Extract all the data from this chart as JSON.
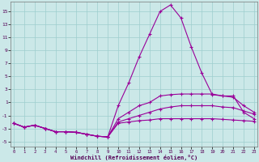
{
  "xlabel": "Windchill (Refroidissement éolien,°C)",
  "bg_color": "#cbe8e8",
  "line_color": "#990099",
  "x_ticks": [
    0,
    1,
    2,
    3,
    4,
    5,
    6,
    7,
    8,
    9,
    10,
    11,
    12,
    13,
    14,
    15,
    16,
    17,
    18,
    19,
    20,
    21,
    22,
    23
  ],
  "y_ticks": [
    -5,
    -3,
    -1,
    1,
    3,
    5,
    7,
    9,
    11,
    13,
    15
  ],
  "xlim": [
    -0.3,
    23.3
  ],
  "ylim": [
    -5.8,
    16.5
  ],
  "series": [
    [
      0,
      1,
      2,
      3,
      4,
      5,
      6,
      7,
      8,
      9,
      10,
      11,
      12,
      13,
      14,
      15,
      16,
      17,
      18,
      19,
      20,
      21,
      22,
      23
    ],
    [
      -2.2,
      -2.8,
      -2.5,
      -3.0,
      -3.5,
      -3.5,
      -3.6,
      -3.9,
      -4.2,
      -4.3,
      0.5,
      4.0,
      8.0,
      11.5,
      15.0,
      16.0,
      14.0,
      9.5,
      5.5,
      2.2,
      2.0,
      2.0,
      -0.5,
      -1.5
    ],
    [
      -2.2,
      -2.8,
      -2.5,
      -3.0,
      -3.5,
      -3.5,
      -3.6,
      -3.9,
      -4.2,
      -4.3,
      -1.5,
      -0.5,
      0.5,
      1.0,
      2.0,
      2.2,
      2.3,
      2.3,
      2.3,
      2.3,
      2.0,
      1.8,
      0.5,
      -0.5
    ],
    [
      -2.2,
      -2.8,
      -2.5,
      -3.0,
      -3.5,
      -3.5,
      -3.6,
      -3.9,
      -4.2,
      -4.3,
      -2.0,
      -1.5,
      -1.0,
      -0.5,
      0.0,
      0.3,
      0.5,
      0.5,
      0.5,
      0.5,
      0.3,
      0.2,
      -0.3,
      -0.8
    ],
    [
      -2.2,
      -2.8,
      -2.5,
      -3.0,
      -3.5,
      -3.5,
      -3.6,
      -3.9,
      -4.2,
      -4.3,
      -2.2,
      -2.0,
      -1.8,
      -1.7,
      -1.5,
      -1.5,
      -1.5,
      -1.5,
      -1.5,
      -1.5,
      -1.6,
      -1.7,
      -1.8,
      -1.9
    ]
  ],
  "grid_color": "#9ecece",
  "marker": "+",
  "markersize": 3.5,
  "linewidth": 0.8
}
